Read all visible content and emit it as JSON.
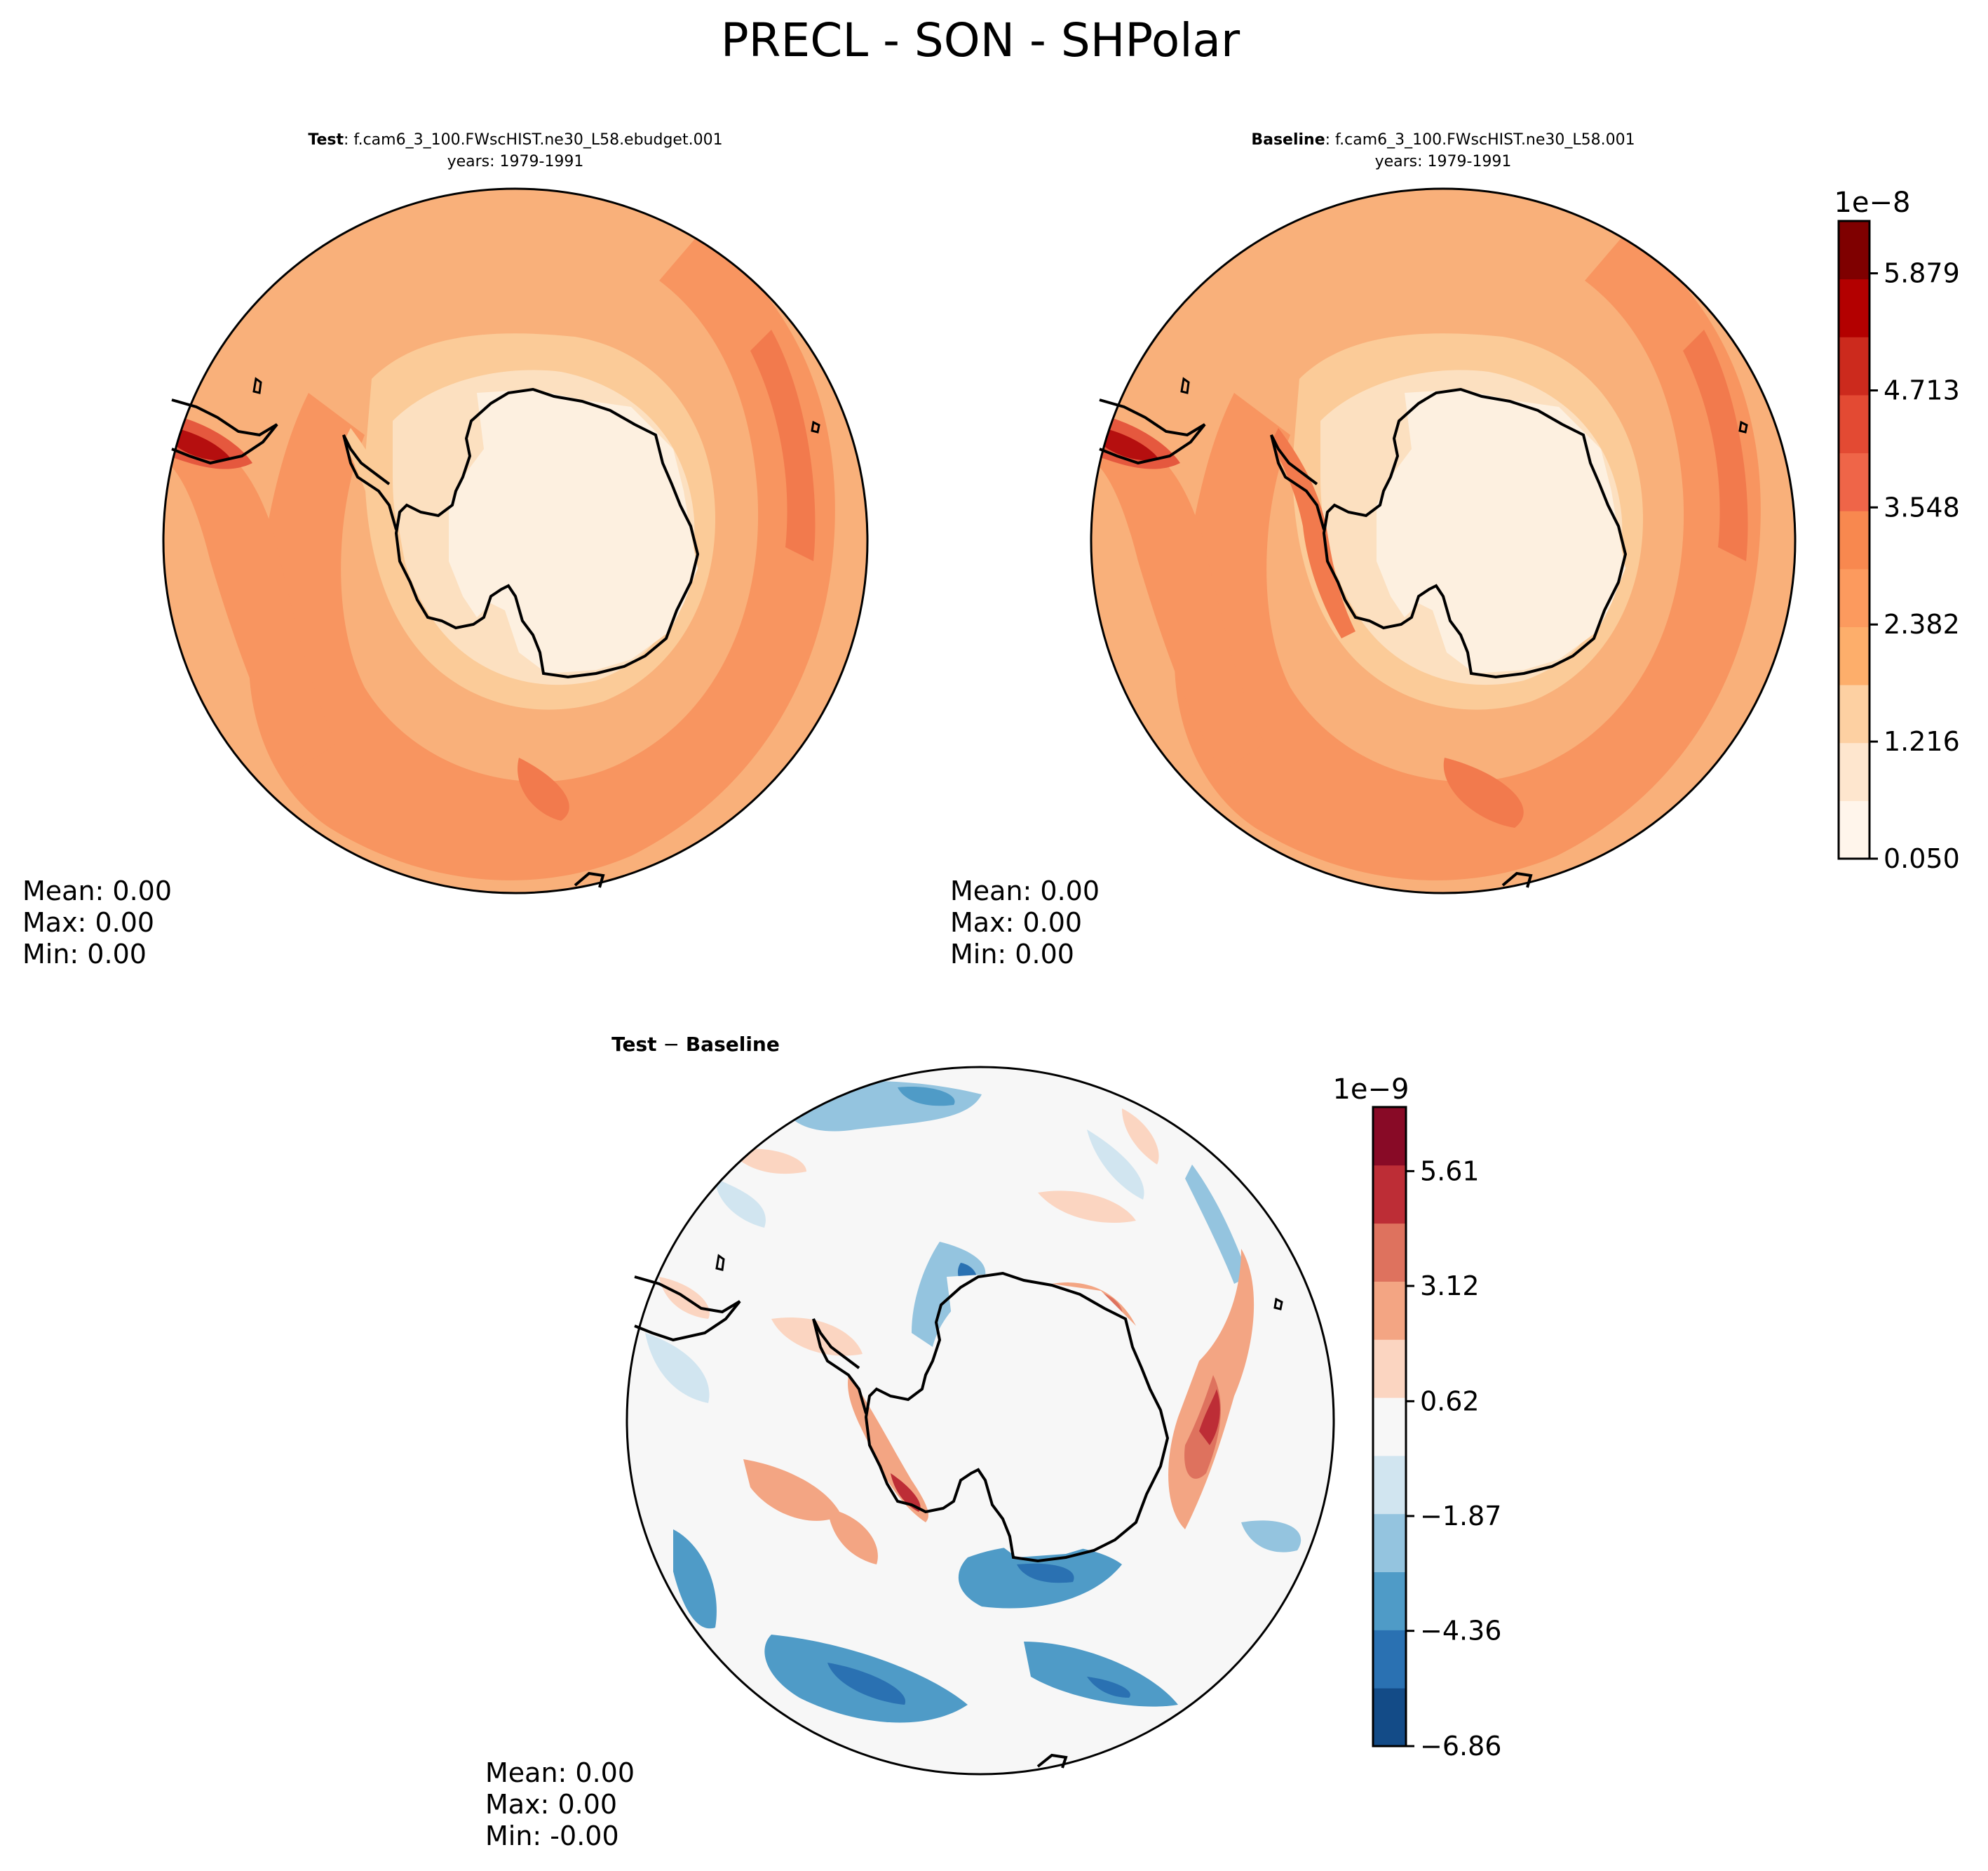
{
  "figure_title": "PRECL - SON - SHPolar",
  "chart_data": [
    {
      "type": "contour",
      "projection": "south-polar-stereographic",
      "title_bold": "Test",
      "title_rest": ": f.cam6_3_100.FWscHIST.ne30_L58.ebudget.001",
      "subtitle": "years: 1979-1991",
      "stats": {
        "mean": "Mean:  0.00",
        "max": "Max:  0.00",
        "min": "Min:  0.00"
      },
      "colors": [
        "#fdf0e0",
        "#fce0c0",
        "#fbcb98",
        "#f9b07a",
        "#f89560",
        "#f27a4d",
        "#e5583e",
        "#d53227",
        "#b50f0f"
      ]
    },
    {
      "type": "contour",
      "projection": "south-polar-stereographic",
      "title_bold": "Baseline",
      "title_rest": ": f.cam6_3_100.FWscHIST.ne30_L58.001",
      "subtitle": "years: 1979-1991",
      "stats": {
        "mean": "Mean:  0.00",
        "max": "Max:  0.00",
        "min": "Min:  0.00"
      },
      "colorbar": {
        "multiplier": "1e−8",
        "range": [
          0.05,
          6.4
        ],
        "tick_values": [
          0.05,
          1.216,
          2.382,
          3.548,
          4.713,
          5.879
        ],
        "tick_labels": [
          "0.050",
          "1.216",
          "2.382",
          "3.548",
          "4.713",
          "5.879"
        ],
        "levels": 11,
        "colors": [
          "#fff5eb",
          "#fee6ce",
          "#fdd0a2",
          "#fdae6b",
          "#fc9a5e",
          "#f8884f",
          "#ef6548",
          "#e34a33",
          "#cc2a1d",
          "#b30000",
          "#7f0000"
        ]
      }
    },
    {
      "type": "contour",
      "projection": "south-polar-stereographic",
      "title_bold": "Test",
      "title_minus": " − ",
      "title_bold2": "Baseline",
      "stats": {
        "mean": "Mean:  0.00",
        "max": "Max:  0.00",
        "min": "Min: -0.00"
      },
      "colorbar": {
        "multiplier": "1e−9",
        "range": [
          -6.86,
          7.0
        ],
        "tick_values": [
          -6.86,
          -4.36,
          -1.87,
          0.62,
          3.12,
          5.61
        ],
        "tick_labels": [
          "−6.86",
          "−4.36",
          "−1.87",
          "0.62",
          "3.12",
          "5.61"
        ],
        "levels": 11,
        "colors": [
          "#134b87",
          "#2a71b2",
          "#4f9bc7",
          "#94c4df",
          "#d1e5f0",
          "#f7f7f7",
          "#fbd5c1",
          "#f3a583",
          "#de725e",
          "#bd2d36",
          "#880a26"
        ]
      }
    }
  ]
}
